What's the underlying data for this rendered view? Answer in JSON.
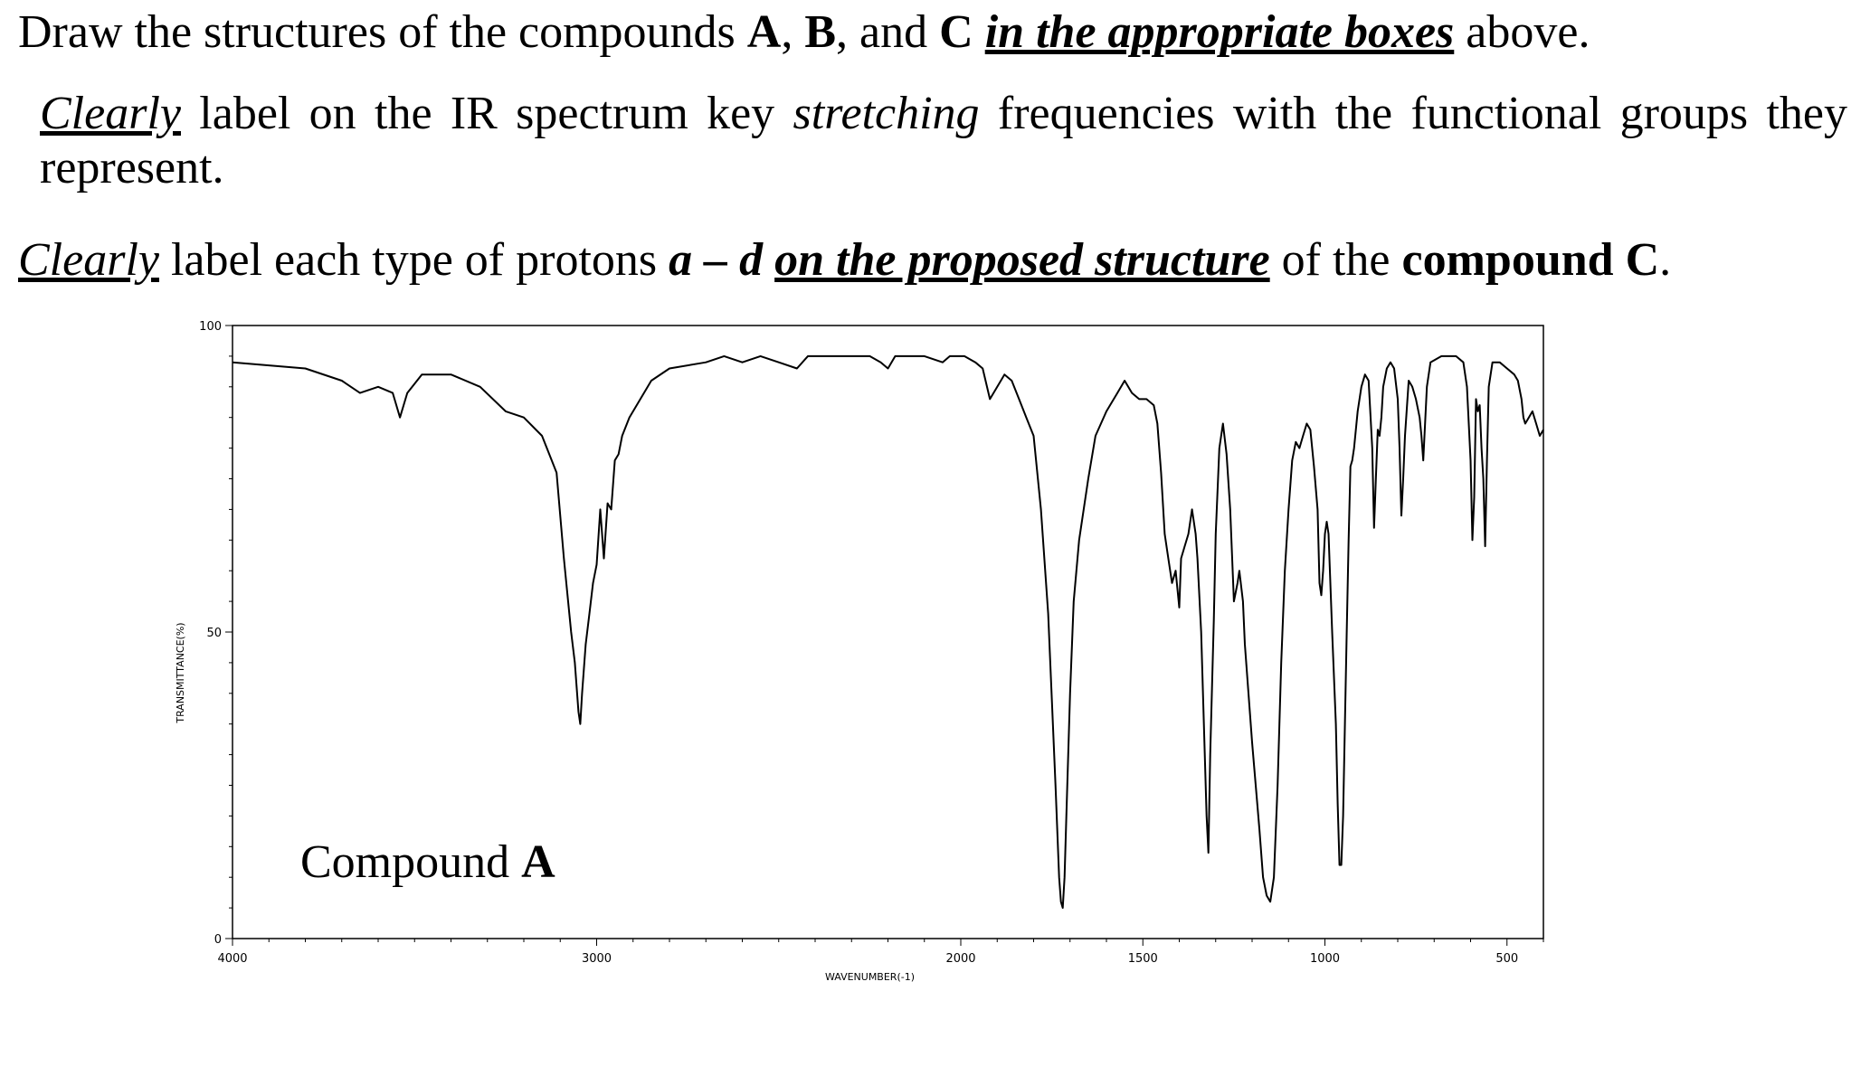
{
  "instructions": {
    "line1": {
      "p1": "Draw the structures of the compounds ",
      "a": "A",
      "p2": ", ",
      "b": "B",
      "p3": ", and ",
      "c": "C",
      "p4": " ",
      "emph": "in the appropriate boxes",
      "p5": " above."
    },
    "line2": {
      "clearly": "Clearly",
      "p1": " label on the IR spectrum key ",
      "stretching": "stretching",
      "p2": " frequencies with the functional groups they represent."
    },
    "line3": {
      "clearly": "Clearly",
      "p1": " label each type of protons ",
      "range": "a – d",
      "p2": " ",
      "emph": "on the proposed structure",
      "p3": " of the ",
      "compound": "compound C",
      "p4": "."
    }
  },
  "chart_data": {
    "type": "line",
    "title": "",
    "xlabel": "WAVENUMBER(-1)",
    "ylabel": "TRANSMITTANCE(%)",
    "xlim": [
      4000,
      400
    ],
    "ylim": [
      0,
      100
    ],
    "x_ticks": [
      4000,
      3000,
      2000,
      1500,
      1000,
      500
    ],
    "y_ticks": [
      0,
      50,
      100
    ],
    "annotation": {
      "prefix": "Compound ",
      "bold": "A"
    },
    "line_color": "#000000",
    "series": [
      {
        "name": "",
        "points": [
          [
            4000,
            94
          ],
          [
            3800,
            93
          ],
          [
            3700,
            91
          ],
          [
            3650,
            89
          ],
          [
            3600,
            90
          ],
          [
            3560,
            89
          ],
          [
            3540,
            85
          ],
          [
            3520,
            89
          ],
          [
            3480,
            92
          ],
          [
            3400,
            92
          ],
          [
            3320,
            90
          ],
          [
            3250,
            86
          ],
          [
            3200,
            85
          ],
          [
            3150,
            82
          ],
          [
            3110,
            76
          ],
          [
            3090,
            62
          ],
          [
            3070,
            50
          ],
          [
            3060,
            45
          ],
          [
            3050,
            37
          ],
          [
            3045,
            35
          ],
          [
            3040,
            40
          ],
          [
            3030,
            48
          ],
          [
            3020,
            53
          ],
          [
            3010,
            58
          ],
          [
            3000,
            61
          ],
          [
            2990,
            70
          ],
          [
            2980,
            62
          ],
          [
            2970,
            71
          ],
          [
            2960,
            70
          ],
          [
            2950,
            78
          ],
          [
            2940,
            79
          ],
          [
            2930,
            82
          ],
          [
            2910,
            85
          ],
          [
            2880,
            88
          ],
          [
            2850,
            91
          ],
          [
            2800,
            93
          ],
          [
            2700,
            94
          ],
          [
            2650,
            95
          ],
          [
            2600,
            94
          ],
          [
            2550,
            95
          ],
          [
            2500,
            94
          ],
          [
            2450,
            93
          ],
          [
            2420,
            95
          ],
          [
            2350,
            95
          ],
          [
            2250,
            95
          ],
          [
            2220,
            94
          ],
          [
            2200,
            93
          ],
          [
            2180,
            95
          ],
          [
            2150,
            95
          ],
          [
            2100,
            95
          ],
          [
            2050,
            94
          ],
          [
            2030,
            95
          ],
          [
            1990,
            95
          ],
          [
            1960,
            94
          ],
          [
            1940,
            93
          ],
          [
            1920,
            88
          ],
          [
            1900,
            90
          ],
          [
            1880,
            92
          ],
          [
            1860,
            91
          ],
          [
            1840,
            88
          ],
          [
            1820,
            85
          ],
          [
            1800,
            82
          ],
          [
            1780,
            70
          ],
          [
            1760,
            53
          ],
          [
            1740,
            25
          ],
          [
            1730,
            10
          ],
          [
            1725,
            6
          ],
          [
            1720,
            5
          ],
          [
            1715,
            10
          ],
          [
            1710,
            20
          ],
          [
            1700,
            40
          ],
          [
            1690,
            55
          ],
          [
            1675,
            65
          ],
          [
            1650,
            75
          ],
          [
            1630,
            82
          ],
          [
            1600,
            86
          ],
          [
            1570,
            89
          ],
          [
            1550,
            91
          ],
          [
            1530,
            89
          ],
          [
            1510,
            88
          ],
          [
            1490,
            88
          ],
          [
            1470,
            87
          ],
          [
            1460,
            84
          ],
          [
            1450,
            76
          ],
          [
            1440,
            66
          ],
          [
            1430,
            62
          ],
          [
            1420,
            58
          ],
          [
            1410,
            60
          ],
          [
            1400,
            54
          ],
          [
            1395,
            62
          ],
          [
            1385,
            64
          ],
          [
            1375,
            66
          ],
          [
            1365,
            70
          ],
          [
            1355,
            66
          ],
          [
            1350,
            62
          ],
          [
            1340,
            50
          ],
          [
            1335,
            40
          ],
          [
            1330,
            30
          ],
          [
            1325,
            20
          ],
          [
            1320,
            14
          ],
          [
            1315,
            30
          ],
          [
            1305,
            52
          ],
          [
            1300,
            66
          ],
          [
            1290,
            80
          ],
          [
            1280,
            84
          ],
          [
            1270,
            79
          ],
          [
            1260,
            70
          ],
          [
            1250,
            55
          ],
          [
            1240,
            58
          ],
          [
            1235,
            60
          ],
          [
            1225,
            55
          ],
          [
            1220,
            48
          ],
          [
            1210,
            40
          ],
          [
            1200,
            32
          ],
          [
            1190,
            25
          ],
          [
            1180,
            18
          ],
          [
            1170,
            10
          ],
          [
            1160,
            7
          ],
          [
            1150,
            6
          ],
          [
            1140,
            10
          ],
          [
            1130,
            25
          ],
          [
            1120,
            45
          ],
          [
            1110,
            60
          ],
          [
            1100,
            70
          ],
          [
            1090,
            78
          ],
          [
            1080,
            81
          ],
          [
            1070,
            80
          ],
          [
            1060,
            82
          ],
          [
            1050,
            84
          ],
          [
            1040,
            83
          ],
          [
            1030,
            77
          ],
          [
            1020,
            70
          ],
          [
            1015,
            58
          ],
          [
            1010,
            56
          ],
          [
            1005,
            60
          ],
          [
            1000,
            66
          ],
          [
            995,
            68
          ],
          [
            990,
            66
          ],
          [
            985,
            58
          ],
          [
            980,
            50
          ],
          [
            970,
            35
          ],
          [
            965,
            22
          ],
          [
            960,
            12
          ],
          [
            955,
            12
          ],
          [
            950,
            20
          ],
          [
            945,
            35
          ],
          [
            940,
            50
          ],
          [
            935,
            65
          ],
          [
            930,
            77
          ],
          [
            925,
            78
          ],
          [
            920,
            80
          ],
          [
            910,
            86
          ],
          [
            900,
            90
          ],
          [
            890,
            92
          ],
          [
            880,
            91
          ],
          [
            870,
            80
          ],
          [
            865,
            67
          ],
          [
            860,
            75
          ],
          [
            855,
            83
          ],
          [
            850,
            82
          ],
          [
            845,
            85
          ],
          [
            840,
            90
          ],
          [
            830,
            93
          ],
          [
            820,
            94
          ],
          [
            810,
            93
          ],
          [
            800,
            88
          ],
          [
            795,
            80
          ],
          [
            790,
            69
          ],
          [
            785,
            75
          ],
          [
            780,
            82
          ],
          [
            770,
            91
          ],
          [
            760,
            90
          ],
          [
            750,
            88
          ],
          [
            740,
            85
          ],
          [
            735,
            82
          ],
          [
            730,
            78
          ],
          [
            725,
            84
          ],
          [
            720,
            90
          ],
          [
            710,
            94
          ],
          [
            680,
            95
          ],
          [
            640,
            95
          ],
          [
            620,
            94
          ],
          [
            610,
            90
          ],
          [
            605,
            84
          ],
          [
            600,
            78
          ],
          [
            595,
            65
          ],
          [
            590,
            72
          ],
          [
            585,
            88
          ],
          [
            580,
            86
          ],
          [
            575,
            87
          ],
          [
            570,
            80
          ],
          [
            565,
            75
          ],
          [
            560,
            64
          ],
          [
            555,
            78
          ],
          [
            550,
            90
          ],
          [
            540,
            94
          ],
          [
            520,
            94
          ],
          [
            500,
            93
          ],
          [
            480,
            92
          ],
          [
            470,
            91
          ],
          [
            460,
            88
          ],
          [
            455,
            85
          ],
          [
            450,
            84
          ],
          [
            440,
            85
          ],
          [
            430,
            86
          ],
          [
            420,
            84
          ],
          [
            410,
            82
          ],
          [
            400,
            83
          ]
        ]
      }
    ]
  }
}
